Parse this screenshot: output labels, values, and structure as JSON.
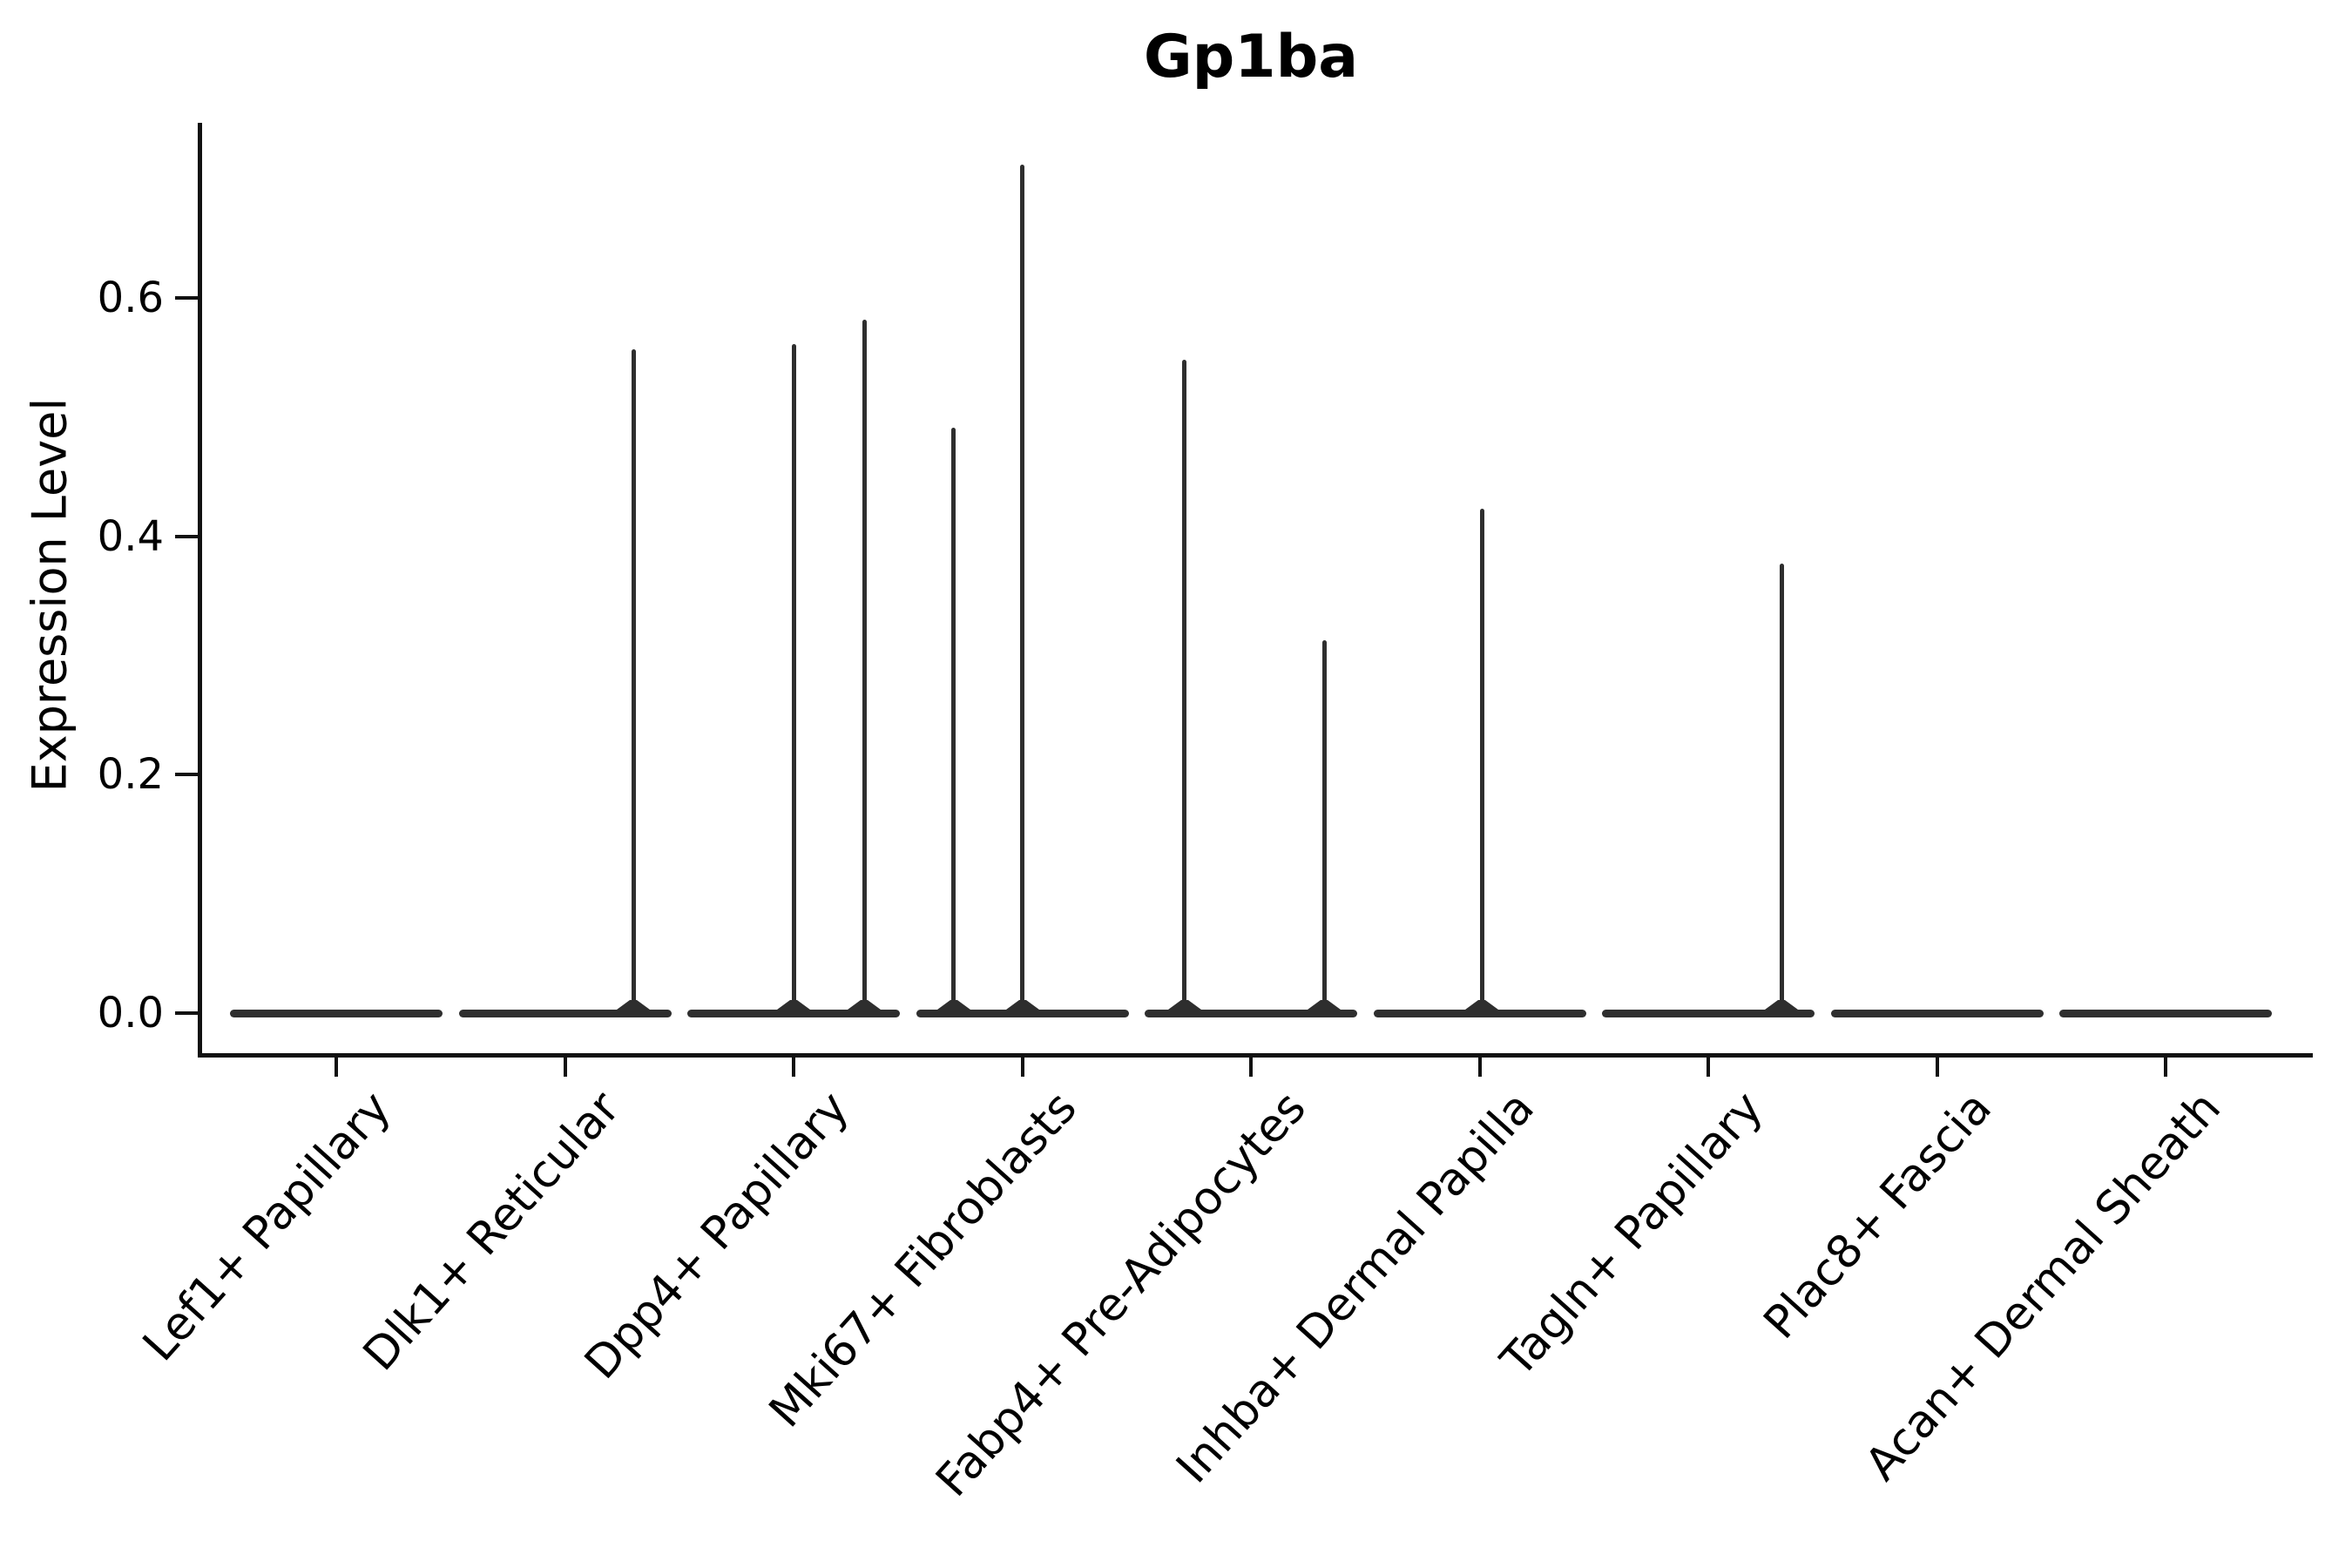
{
  "chart_data": {
    "type": "violin",
    "title": "Gp1ba",
    "ylabel": "Expression Level",
    "xlabel": "",
    "grid": false,
    "legend": "none",
    "ylim": [
      -0.034,
      0.747
    ],
    "yticks": [
      {
        "label": "0.0",
        "value": 0.0
      },
      {
        "label": "0.2",
        "value": 0.2
      },
      {
        "label": "0.4",
        "value": 0.4
      },
      {
        "label": "0.6",
        "value": 0.6
      }
    ],
    "categories": [
      "Lef1+ Papillary",
      "Dlk1+ Reticular",
      "Dpp4+ Papillary",
      "Mki67+ Fibroblasts",
      "Fabp4+ Pre-Adipocytes",
      "Inhba+ Dermal Papilla",
      "Tagln+ Papillary",
      "Plac8+ Fascia",
      "Acan+ Dermal Sheath"
    ],
    "series": [
      {
        "name": "Lef1+ Papillary",
        "baseline_value": 0.0,
        "spikes": []
      },
      {
        "name": "Dlk1+ Reticular",
        "baseline_value": 0.0,
        "spikes": [
          {
            "offset": 0.3,
            "value": 0.557
          }
        ]
      },
      {
        "name": "Dpp4+ Papillary",
        "baseline_value": 0.0,
        "spikes": [
          {
            "offset": 0.0,
            "value": 0.561
          },
          {
            "offset": 0.31,
            "value": 0.582
          }
        ]
      },
      {
        "name": "Mki67+ Fibroblasts",
        "baseline_value": 0.0,
        "spikes": [
          {
            "offset": -0.3,
            "value": 0.491
          },
          {
            "offset": 0.0,
            "value": 0.712
          }
        ]
      },
      {
        "name": "Fabp4+ Pre-Adipocytes",
        "baseline_value": 0.0,
        "spikes": [
          {
            "offset": -0.29,
            "value": 0.548
          },
          {
            "offset": 0.32,
            "value": 0.313
          }
        ]
      },
      {
        "name": "Inhba+ Dermal Papilla",
        "baseline_value": 0.0,
        "spikes": [
          {
            "offset": 0.01,
            "value": 0.423
          }
        ]
      },
      {
        "name": "Tagln+ Papillary",
        "baseline_value": 0.0,
        "spikes": [
          {
            "offset": 0.32,
            "value": 0.377
          }
        ]
      },
      {
        "name": "Plac8+ Fascia",
        "baseline_value": 0.0,
        "spikes": []
      },
      {
        "name": "Acan+ Dermal Sheath",
        "baseline_value": 0.0,
        "spikes": []
      }
    ],
    "colors": {
      "violin": "#2e2e2e",
      "axis": "#111111",
      "text": "#000000",
      "background": "#ffffff"
    }
  }
}
